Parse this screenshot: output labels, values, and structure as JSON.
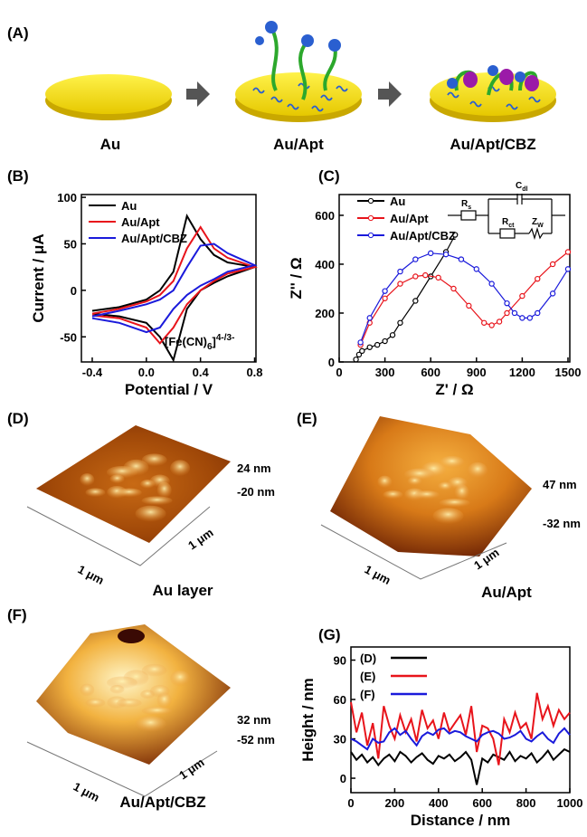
{
  "figure": {
    "panel_a": {
      "label": "(A)",
      "captions": [
        "Au",
        "Au/Apt",
        "Au/Apt/CBZ"
      ]
    },
    "afm": [
      {
        "label": "(D)",
        "z_top": "24 nm",
        "z_bottom": "-20 nm",
        "scale_x": "1 μm",
        "scale_y": "1 μm",
        "caption": "Au layer"
      },
      {
        "label": "(E)",
        "z_top": "47 nm",
        "z_bottom": "-32 nm",
        "scale_x": "1 μm",
        "scale_y": "1 μm",
        "caption": "Au/Apt"
      },
      {
        "label": "(F)",
        "z_top": "32 nm",
        "z_bottom": "-52 nm",
        "scale_x": "1 μm",
        "scale_y": "1 μm",
        "caption": "Au/Apt/CBZ"
      }
    ]
  },
  "chart_data": [
    {
      "type": "line",
      "panel_label": "(B)",
      "x_label": "Potential / V",
      "y_label": "Current / μA",
      "x": [
        -0.4,
        -0.2,
        0,
        0.1,
        0.2,
        0.3,
        0.4,
        0.5,
        0.6,
        0.8,
        0.6,
        0.5,
        0.4,
        0.3,
        0.2,
        0.1,
        0,
        -0.2,
        -0.4
      ],
      "series": [
        {
          "name": "Au",
          "color": "#000000",
          "values": [
            -22,
            -18,
            -10,
            0,
            20,
            80,
            55,
            38,
            30,
            25,
            15,
            8,
            0,
            -20,
            -75,
            -50,
            -35,
            -28,
            -25
          ]
        },
        {
          "name": "Au/Apt",
          "color": "#e8141b",
          "values": [
            -25,
            -20,
            -12,
            -5,
            10,
            45,
            68,
            45,
            35,
            25,
            18,
            10,
            0,
            -15,
            -40,
            -57,
            -40,
            -30,
            -27
          ]
        },
        {
          "name": "Au/Apt/CBZ",
          "color": "#1a1adb",
          "values": [
            -28,
            -22,
            -15,
            -10,
            0,
            25,
            48,
            50,
            40,
            27,
            20,
            12,
            5,
            -5,
            -20,
            -40,
            -45,
            -35,
            -30
          ]
        }
      ],
      "xlim": [
        -0.48,
        0.81
      ],
      "ylim": [
        -77,
        103
      ],
      "xticks": [
        -0.4,
        {
          "value": 0,
          "label": "0.0"
        },
        0.4,
        0.8
      ],
      "yticks": [
        -50,
        0,
        50,
        100
      ],
      "annotation_parts": [
        "[Fe(CN)",
        "6",
        "]",
        "4-/3-"
      ]
    },
    {
      "type": "line",
      "panel_label": "(C)",
      "x_label": "Z' / Ω",
      "y_label": "Z'' / Ω",
      "markers": true,
      "series": [
        {
          "name": "Au",
          "color": "#000000",
          "x": [
            110,
            130,
            150,
            200,
            250,
            300,
            350,
            400,
            500,
            600,
            700,
            760
          ],
          "values": [
            10,
            30,
            45,
            60,
            70,
            85,
            110,
            160,
            250,
            350,
            450,
            520
          ]
        },
        {
          "name": "Au/Apt",
          "color": "#e8141b",
          "x": [
            140,
            200,
            300,
            400,
            500,
            565,
            650,
            750,
            850,
            950,
            1000,
            1050,
            1100,
            1200,
            1300,
            1400,
            1500
          ],
          "values": [
            70,
            160,
            260,
            320,
            350,
            355,
            345,
            300,
            230,
            160,
            150,
            165,
            200,
            270,
            340,
            400,
            450
          ]
        },
        {
          "name": "Au/Apt/CBZ",
          "color": "#1a1adb",
          "x": [
            140,
            200,
            300,
            400,
            500,
            600,
            700,
            800,
            900,
            1000,
            1100,
            1150,
            1200,
            1250,
            1300,
            1400,
            1500
          ],
          "values": [
            80,
            180,
            290,
            370,
            420,
            445,
            440,
            420,
            380,
            320,
            240,
            200,
            180,
            180,
            200,
            280,
            380
          ]
        }
      ],
      "xlim": [
        0,
        1512
      ],
      "ylim": [
        0,
        685
      ],
      "xticks": [
        0,
        300,
        600,
        900,
        1200,
        1500
      ],
      "yticks": [
        0,
        200,
        400,
        600
      ],
      "circuit": [
        [
          "R",
          "s"
        ],
        [
          "C",
          "dl"
        ],
        [
          "R",
          "ct"
        ],
        [
          "Z",
          "W"
        ]
      ]
    },
    {
      "type": "line",
      "panel_label": "(G)",
      "x_label": "Distance / nm",
      "y_label": "Height / nm",
      "x": [
        0,
        25,
        50,
        75,
        100,
        125,
        150,
        175,
        200,
        225,
        250,
        275,
        300,
        325,
        350,
        375,
        400,
        425,
        450,
        475,
        500,
        525,
        550,
        575,
        600,
        625,
        650,
        675,
        700,
        725,
        750,
        775,
        800,
        825,
        850,
        875,
        900,
        925,
        950,
        975,
        1000
      ],
      "series": [
        {
          "name": "(D)",
          "color": "#000000",
          "values": [
            20,
            14,
            18,
            12,
            16,
            10,
            15,
            18,
            13,
            20,
            17,
            12,
            16,
            19,
            14,
            11,
            17,
            15,
            18,
            13,
            16,
            20,
            14,
            -5,
            15,
            12,
            18,
            16,
            14,
            20,
            13,
            17,
            15,
            19,
            12,
            16,
            21,
            14,
            18,
            22,
            20
          ]
        },
        {
          "name": "(E)",
          "color": "#e8141b",
          "values": [
            58,
            35,
            50,
            25,
            42,
            15,
            55,
            40,
            30,
            48,
            35,
            45,
            28,
            52,
            38,
            44,
            30,
            50,
            36,
            42,
            48,
            33,
            55,
            20,
            40,
            38,
            30,
            10,
            45,
            35,
            50,
            38,
            42,
            30,
            65,
            45,
            55,
            40,
            52,
            45,
            50
          ]
        },
        {
          "name": "(F)",
          "color": "#1a1adb",
          "values": [
            30,
            28,
            25,
            22,
            30,
            27,
            28,
            35,
            38,
            33,
            36,
            30,
            25,
            32,
            35,
            33,
            37,
            38,
            34,
            36,
            35,
            32,
            30,
            28,
            33,
            35,
            36,
            34,
            30,
            31,
            33,
            36,
            30,
            28,
            32,
            35,
            30,
            27,
            34,
            38,
            33
          ]
        }
      ],
      "xlim": [
        0,
        1000
      ],
      "ylim": [
        -11,
        100
      ],
      "xticks": [
        0,
        200,
        400,
        600,
        800,
        1000
      ],
      "yticks": [
        0,
        30,
        60,
        90
      ]
    }
  ]
}
